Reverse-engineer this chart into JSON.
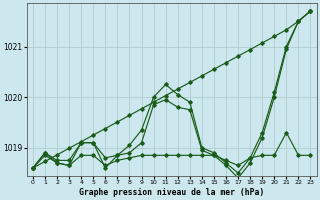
{
  "title": "Graphe pression niveau de la mer (hPa)",
  "background_color": "#cce8ee",
  "grid_color": "#b0cccc",
  "line_color": "#1a5c1a",
  "ylim": [
    1018.45,
    1021.85
  ],
  "yticks": [
    1019,
    1020,
    1021
  ],
  "xlim": [
    -0.5,
    23.5
  ],
  "xticks": [
    0,
    1,
    2,
    3,
    4,
    5,
    6,
    7,
    8,
    9,
    10,
    11,
    12,
    13,
    14,
    15,
    16,
    17,
    18,
    19,
    20,
    21,
    22,
    23
  ],
  "line_straight": [
    1018.6,
    1018.73,
    1018.86,
    1018.99,
    1019.12,
    1019.25,
    1019.38,
    1019.51,
    1019.64,
    1019.77,
    1019.9,
    1020.03,
    1020.16,
    1020.29,
    1020.42,
    1020.55,
    1020.68,
    1020.81,
    1020.94,
    1021.07,
    1021.2,
    1021.33,
    1021.5,
    1021.7
  ],
  "line_zigzag": [
    1018.6,
    1018.9,
    1018.75,
    1018.75,
    1019.1,
    1019.1,
    1018.8,
    1018.85,
    1019.05,
    1019.35,
    1020.0,
    1020.25,
    1020.05,
    1019.9,
    1019.0,
    1018.9,
    1018.7,
    1018.5,
    1018.8,
    1019.3,
    1020.1,
    1021.0,
    1021.5,
    1021.7
  ],
  "line_flat": [
    1018.6,
    1018.85,
    1018.7,
    1018.65,
    1018.85,
    1018.85,
    1018.65,
    1018.75,
    1018.8,
    1018.85,
    1018.85,
    1018.85,
    1018.85,
    1018.85,
    1018.85,
    1018.85,
    1018.75,
    1018.65,
    1018.8,
    1018.85,
    1018.85,
    1019.3,
    1018.85,
    1018.85
  ],
  "line_mid": [
    1018.6,
    1018.9,
    1018.7,
    1018.65,
    1019.1,
    1019.1,
    1018.6,
    1018.85,
    1018.9,
    1019.1,
    1019.85,
    1019.95,
    1019.8,
    1019.75,
    1018.95,
    1018.85,
    1018.65,
    1018.4,
    1018.7,
    1019.2,
    1020.0,
    1020.95,
    1021.5,
    1021.7
  ]
}
